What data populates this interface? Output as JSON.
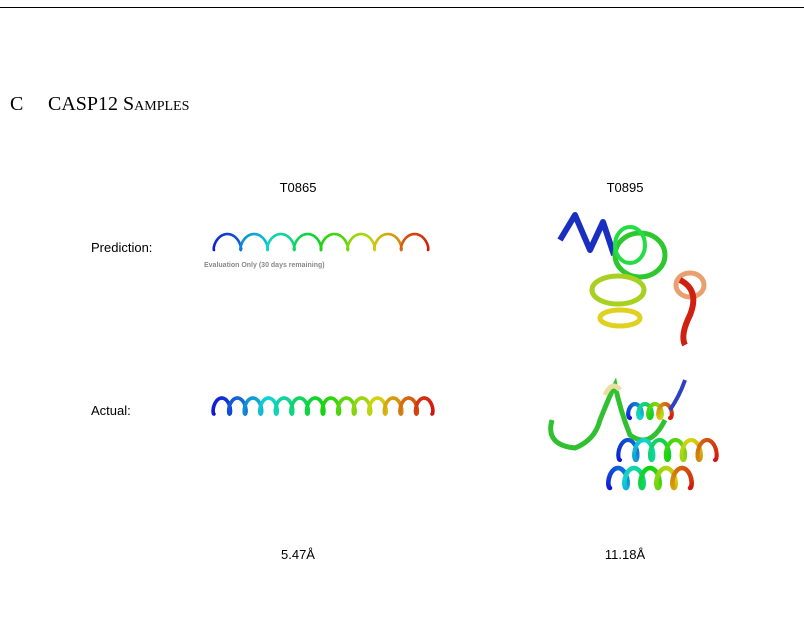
{
  "section": {
    "letter": "C",
    "title": "CASP12 Samples"
  },
  "columns": [
    "T0865",
    "T0895"
  ],
  "rows": [
    "Prediction:",
    "Actual:"
  ],
  "rmsd": [
    "5.47Å",
    "11.18Å"
  ],
  "watermark": "Evaluation Only (30 days remaining)"
}
